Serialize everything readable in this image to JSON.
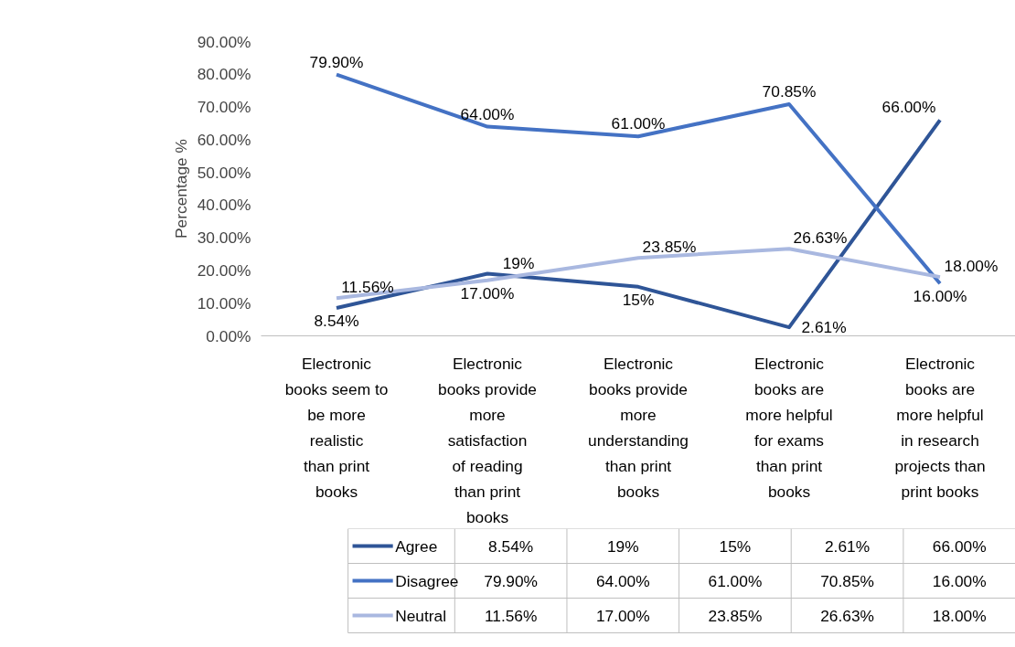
{
  "chart_data": {
    "type": "line",
    "ylabel": "Percentage %",
    "categories": [
      "Electronic books seem to be more realistic than print books",
      "Electronic books provide more satisfaction of reading than print books",
      "Electronic books provide more understanding than print books",
      "Electronic books are more helpful for exams than print books",
      "Electronic books are more helpful in research projects than print books"
    ],
    "series": [
      {
        "name": "Agree",
        "color": "#2f5597",
        "values": [
          8.54,
          19,
          15,
          2.61,
          66
        ],
        "value_labels": [
          "8.54%",
          "19%",
          "15%",
          "2.61%",
          "66.00%"
        ]
      },
      {
        "name": "Disagree",
        "color": "#4472c4",
        "values": [
          79.9,
          64,
          61,
          70.85,
          16
        ],
        "value_labels": [
          "79.90%",
          "64.00%",
          "61.00%",
          "70.85%",
          "16.00%"
        ]
      },
      {
        "name": "Neutral",
        "color": "#a9b8e0",
        "values": [
          11.56,
          17,
          23.85,
          26.63,
          18
        ],
        "value_labels": [
          "11.56%",
          "17.00%",
          "23.85%",
          "26.63%",
          "18.00%"
        ]
      }
    ],
    "ylim": [
      0,
      90
    ],
    "yticks": [
      {
        "value": 0,
        "label": "0.00%"
      },
      {
        "value": 10,
        "label": "10.00%"
      },
      {
        "value": 20,
        "label": "20.00%"
      },
      {
        "value": 30,
        "label": "30.00%"
      },
      {
        "value": 40,
        "label": "40.00%"
      },
      {
        "value": 50,
        "label": "50.00%"
      },
      {
        "value": 60,
        "label": "60.00%"
      },
      {
        "value": 70,
        "label": "70.00%"
      },
      {
        "value": 80,
        "label": "80.00%"
      },
      {
        "value": 90,
        "label": "90.00%"
      }
    ],
    "grid": false,
    "legend": "bottom",
    "line_style": "solid"
  }
}
